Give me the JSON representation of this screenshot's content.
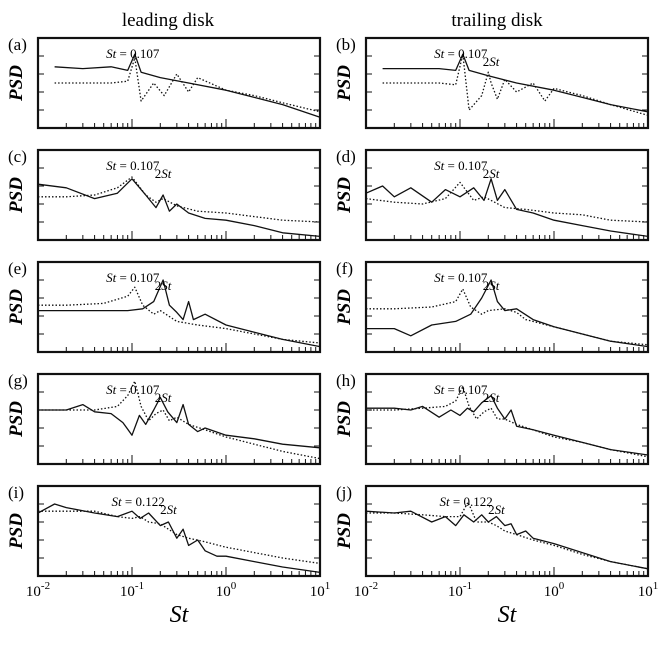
{
  "figure": {
    "column_titles": [
      "leading disk",
      "trailing disk"
    ],
    "ylabel": "PSD",
    "xlabel": "St",
    "x_tick_labels": [
      {
        "base": "10",
        "exp": "-2",
        "value": 0.01
      },
      {
        "base": "10",
        "exp": "-1",
        "value": 0.1
      },
      {
        "base": "10",
        "exp": "0",
        "value": 1
      },
      {
        "base": "10",
        "exp": "1",
        "value": 10
      }
    ]
  },
  "chart_data": [
    {
      "panel": "(a)",
      "type": "line",
      "xscale": "log",
      "xlim": [
        0.01,
        10
      ],
      "annotations": [
        {
          "text_prefix": "St",
          "text": " = 0.107",
          "x": 0.107
        }
      ],
      "series": [
        {
          "style": "solid",
          "x": [
            0.015,
            0.03,
            0.06,
            0.09,
            0.107,
            0.125,
            0.2,
            0.4,
            1,
            2,
            4,
            10
          ],
          "y": [
            0.68,
            0.66,
            0.68,
            0.64,
            0.82,
            0.62,
            0.56,
            0.5,
            0.42,
            0.34,
            0.26,
            0.12
          ]
        },
        {
          "style": "dotted",
          "x": [
            0.015,
            0.03,
            0.06,
            0.09,
            0.107,
            0.125,
            0.17,
            0.22,
            0.3,
            0.4,
            0.5,
            1,
            2,
            4,
            10
          ],
          "y": [
            0.5,
            0.5,
            0.5,
            0.52,
            0.78,
            0.3,
            0.5,
            0.36,
            0.6,
            0.4,
            0.56,
            0.42,
            0.36,
            0.28,
            0.18
          ]
        }
      ]
    },
    {
      "panel": "(b)",
      "type": "line",
      "xscale": "log",
      "xlim": [
        0.01,
        10
      ],
      "annotations": [
        {
          "text_prefix": "St",
          "text": " = 0.107",
          "x": 0.107
        },
        {
          "text_prefix": "2",
          "text": "St",
          "x": 0.214
        }
      ],
      "series": [
        {
          "style": "solid",
          "x": [
            0.015,
            0.03,
            0.06,
            0.09,
            0.107,
            0.125,
            0.2,
            0.4,
            1,
            2,
            4,
            10
          ],
          "y": [
            0.66,
            0.66,
            0.66,
            0.64,
            0.82,
            0.64,
            0.58,
            0.5,
            0.42,
            0.34,
            0.26,
            0.18
          ]
        },
        {
          "style": "dotted",
          "x": [
            0.015,
            0.03,
            0.06,
            0.09,
            0.107,
            0.125,
            0.17,
            0.2,
            0.214,
            0.25,
            0.3,
            0.4,
            0.6,
            0.8,
            1,
            2,
            4,
            10
          ],
          "y": [
            0.5,
            0.5,
            0.5,
            0.48,
            0.82,
            0.2,
            0.36,
            0.62,
            0.5,
            0.32,
            0.54,
            0.4,
            0.5,
            0.3,
            0.44,
            0.36,
            0.26,
            0.14
          ]
        }
      ]
    },
    {
      "panel": "(c)",
      "type": "line",
      "xscale": "log",
      "xlim": [
        0.01,
        10
      ],
      "annotations": [
        {
          "text_prefix": "St",
          "text": " = 0.107",
          "x": 0.107
        },
        {
          "text_prefix": "2",
          "text": "St",
          "x": 0.214
        }
      ],
      "series": [
        {
          "style": "solid",
          "x": [
            0.01,
            0.02,
            0.04,
            0.07,
            0.1,
            0.14,
            0.18,
            0.214,
            0.25,
            0.3,
            0.4,
            0.6,
            1,
            2,
            4,
            10
          ],
          "y": [
            0.62,
            0.58,
            0.46,
            0.52,
            0.68,
            0.5,
            0.36,
            0.5,
            0.32,
            0.4,
            0.3,
            0.24,
            0.22,
            0.16,
            0.08,
            0.04
          ]
        },
        {
          "style": "dotted",
          "x": [
            0.01,
            0.02,
            0.04,
            0.07,
            0.1,
            0.14,
            0.18,
            0.214,
            0.3,
            0.5,
            1,
            2,
            4,
            10
          ],
          "y": [
            0.48,
            0.48,
            0.5,
            0.58,
            0.7,
            0.5,
            0.42,
            0.46,
            0.38,
            0.32,
            0.3,
            0.26,
            0.22,
            0.2
          ]
        }
      ]
    },
    {
      "panel": "(d)",
      "type": "line",
      "xscale": "log",
      "xlim": [
        0.01,
        10
      ],
      "annotations": [
        {
          "text_prefix": "St",
          "text": " = 0.107",
          "x": 0.107
        },
        {
          "text_prefix": "2",
          "text": "St",
          "x": 0.214
        }
      ],
      "series": [
        {
          "style": "solid",
          "x": [
            0.01,
            0.015,
            0.02,
            0.03,
            0.05,
            0.07,
            0.1,
            0.14,
            0.18,
            0.214,
            0.25,
            0.3,
            0.4,
            0.6,
            1,
            2,
            4,
            10
          ],
          "y": [
            0.52,
            0.6,
            0.48,
            0.58,
            0.42,
            0.56,
            0.48,
            0.58,
            0.44,
            0.68,
            0.44,
            0.56,
            0.34,
            0.3,
            0.22,
            0.16,
            0.1,
            0.04
          ]
        },
        {
          "style": "dotted",
          "x": [
            0.01,
            0.02,
            0.04,
            0.07,
            0.1,
            0.14,
            0.18,
            0.214,
            0.3,
            0.5,
            1,
            2,
            4,
            10
          ],
          "y": [
            0.46,
            0.42,
            0.4,
            0.46,
            0.64,
            0.44,
            0.48,
            0.44,
            0.36,
            0.34,
            0.3,
            0.28,
            0.22,
            0.2
          ]
        }
      ]
    },
    {
      "panel": "(e)",
      "type": "line",
      "xscale": "log",
      "xlim": [
        0.01,
        10
      ],
      "annotations": [
        {
          "text_prefix": "St",
          "text": " = 0.107",
          "x": 0.107
        },
        {
          "text_prefix": "2",
          "text": "St",
          "x": 0.214
        }
      ],
      "series": [
        {
          "style": "solid",
          "x": [
            0.01,
            0.02,
            0.05,
            0.09,
            0.13,
            0.17,
            0.214,
            0.25,
            0.3,
            0.35,
            0.4,
            0.45,
            0.6,
            1,
            2,
            4,
            10
          ],
          "y": [
            0.46,
            0.46,
            0.46,
            0.46,
            0.48,
            0.56,
            0.8,
            0.52,
            0.44,
            0.36,
            0.56,
            0.36,
            0.42,
            0.3,
            0.22,
            0.14,
            0.06
          ]
        },
        {
          "style": "dotted",
          "x": [
            0.01,
            0.02,
            0.05,
            0.09,
            0.107,
            0.13,
            0.17,
            0.2,
            0.3,
            0.5,
            1,
            2,
            4,
            10
          ],
          "y": [
            0.52,
            0.52,
            0.54,
            0.62,
            0.72,
            0.52,
            0.42,
            0.46,
            0.34,
            0.3,
            0.26,
            0.2,
            0.14,
            0.1
          ]
        }
      ]
    },
    {
      "panel": "(f)",
      "type": "line",
      "xscale": "log",
      "xlim": [
        0.01,
        10
      ],
      "annotations": [
        {
          "text_prefix": "St",
          "text": " = 0.107",
          "x": 0.107
        },
        {
          "text_prefix": "2",
          "text": "St",
          "x": 0.214
        }
      ],
      "series": [
        {
          "style": "solid",
          "x": [
            0.01,
            0.02,
            0.03,
            0.05,
            0.09,
            0.13,
            0.17,
            0.214,
            0.25,
            0.3,
            0.4,
            0.6,
            1,
            2,
            4,
            10
          ],
          "y": [
            0.26,
            0.26,
            0.18,
            0.3,
            0.34,
            0.42,
            0.6,
            0.8,
            0.56,
            0.46,
            0.48,
            0.36,
            0.28,
            0.2,
            0.12,
            0.06
          ]
        },
        {
          "style": "dotted",
          "x": [
            0.01,
            0.02,
            0.05,
            0.09,
            0.107,
            0.13,
            0.17,
            0.2,
            0.3,
            0.4,
            0.5,
            1,
            2,
            4,
            10
          ],
          "y": [
            0.48,
            0.48,
            0.5,
            0.56,
            0.7,
            0.5,
            0.42,
            0.46,
            0.48,
            0.44,
            0.36,
            0.28,
            0.2,
            0.12,
            0.08
          ]
        }
      ]
    },
    {
      "panel": "(g)",
      "type": "line",
      "xscale": "log",
      "xlim": [
        0.01,
        10
      ],
      "annotations": [
        {
          "text_prefix": "St",
          "text": " = 0.107",
          "x": 0.107
        },
        {
          "text_prefix": "2",
          "text": "St",
          "x": 0.214
        }
      ],
      "series": [
        {
          "style": "solid",
          "x": [
            0.01,
            0.02,
            0.03,
            0.04,
            0.06,
            0.08,
            0.1,
            0.12,
            0.14,
            0.17,
            0.2,
            0.24,
            0.3,
            0.35,
            0.4,
            0.5,
            0.6,
            1,
            2,
            4,
            10
          ],
          "y": [
            0.6,
            0.6,
            0.66,
            0.58,
            0.56,
            0.46,
            0.32,
            0.54,
            0.44,
            0.6,
            0.74,
            0.58,
            0.46,
            0.66,
            0.44,
            0.36,
            0.4,
            0.32,
            0.28,
            0.22,
            0.18
          ]
        },
        {
          "style": "dotted",
          "x": [
            0.01,
            0.02,
            0.04,
            0.07,
            0.09,
            0.107,
            0.125,
            0.15,
            0.18,
            0.214,
            0.25,
            0.3,
            0.4,
            0.6,
            1,
            2,
            4,
            10
          ],
          "y": [
            0.6,
            0.6,
            0.6,
            0.64,
            0.76,
            0.92,
            0.64,
            0.48,
            0.56,
            0.6,
            0.48,
            0.52,
            0.44,
            0.38,
            0.3,
            0.22,
            0.14,
            0.06
          ]
        }
      ]
    },
    {
      "panel": "(h)",
      "type": "line",
      "xscale": "log",
      "xlim": [
        0.01,
        10
      ],
      "annotations": [
        {
          "text_prefix": "St",
          "text": " = 0.107",
          "x": 0.107
        },
        {
          "text_prefix": "2",
          "text": "St",
          "x": 0.214
        }
      ],
      "series": [
        {
          "style": "solid",
          "x": [
            0.01,
            0.02,
            0.03,
            0.04,
            0.06,
            0.08,
            0.1,
            0.12,
            0.14,
            0.17,
            0.214,
            0.25,
            0.3,
            0.35,
            0.4,
            0.6,
            1,
            2,
            4,
            10
          ],
          "y": [
            0.62,
            0.62,
            0.6,
            0.64,
            0.52,
            0.6,
            0.54,
            0.62,
            0.58,
            0.68,
            0.76,
            0.62,
            0.5,
            0.6,
            0.42,
            0.38,
            0.32,
            0.24,
            0.16,
            0.1
          ]
        },
        {
          "style": "dotted",
          "x": [
            0.01,
            0.02,
            0.04,
            0.07,
            0.09,
            0.107,
            0.125,
            0.15,
            0.18,
            0.214,
            0.25,
            0.3,
            0.4,
            0.6,
            1,
            2,
            4,
            10
          ],
          "y": [
            0.6,
            0.6,
            0.62,
            0.64,
            0.7,
            0.86,
            0.64,
            0.5,
            0.58,
            0.62,
            0.5,
            0.5,
            0.44,
            0.38,
            0.3,
            0.24,
            0.16,
            0.08
          ]
        }
      ]
    },
    {
      "panel": "(i)",
      "type": "line",
      "xscale": "log",
      "xlim": [
        0.01,
        10
      ],
      "annotations": [
        {
          "text_prefix": "St",
          "text": " = 0.122",
          "x": 0.122
        },
        {
          "text_prefix": "2",
          "text": "St",
          "x": 0.244
        }
      ],
      "series": [
        {
          "style": "solid",
          "x": [
            0.01,
            0.015,
            0.02,
            0.04,
            0.07,
            0.1,
            0.122,
            0.15,
            0.2,
            0.244,
            0.3,
            0.35,
            0.4,
            0.5,
            0.6,
            0.8,
            1,
            2,
            4,
            10
          ],
          "y": [
            0.7,
            0.8,
            0.76,
            0.7,
            0.66,
            0.72,
            0.64,
            0.7,
            0.56,
            0.6,
            0.42,
            0.52,
            0.34,
            0.4,
            0.28,
            0.22,
            0.22,
            0.16,
            0.1,
            0.04
          ]
        },
        {
          "style": "dotted",
          "x": [
            0.01,
            0.02,
            0.04,
            0.07,
            0.1,
            0.122,
            0.15,
            0.2,
            0.244,
            0.3,
            0.4,
            0.6,
            1,
            2,
            4,
            10
          ],
          "y": [
            0.72,
            0.72,
            0.72,
            0.66,
            0.64,
            0.66,
            0.6,
            0.58,
            0.52,
            0.46,
            0.42,
            0.38,
            0.32,
            0.26,
            0.2,
            0.14
          ]
        }
      ]
    },
    {
      "panel": "(j)",
      "type": "line",
      "xscale": "log",
      "xlim": [
        0.01,
        10
      ],
      "annotations": [
        {
          "text_prefix": "St",
          "text": " = 0.122",
          "x": 0.122
        },
        {
          "text_prefix": "2",
          "text": "St",
          "x": 0.244
        }
      ],
      "series": [
        {
          "style": "solid",
          "x": [
            0.01,
            0.02,
            0.03,
            0.05,
            0.07,
            0.09,
            0.11,
            0.14,
            0.17,
            0.2,
            0.244,
            0.3,
            0.35,
            0.4,
            0.5,
            0.6,
            1,
            2,
            4,
            10
          ],
          "y": [
            0.72,
            0.7,
            0.72,
            0.6,
            0.66,
            0.56,
            0.68,
            0.6,
            0.68,
            0.6,
            0.66,
            0.56,
            0.58,
            0.46,
            0.5,
            0.42,
            0.36,
            0.26,
            0.16,
            0.08
          ]
        },
        {
          "style": "dotted",
          "x": [
            0.01,
            0.02,
            0.04,
            0.07,
            0.1,
            0.122,
            0.15,
            0.2,
            0.244,
            0.3,
            0.4,
            0.6,
            1,
            2,
            4,
            10
          ],
          "y": [
            0.7,
            0.7,
            0.68,
            0.66,
            0.66,
            0.82,
            0.6,
            0.6,
            0.56,
            0.5,
            0.46,
            0.4,
            0.34,
            0.24,
            0.16,
            0.08
          ]
        }
      ]
    }
  ]
}
